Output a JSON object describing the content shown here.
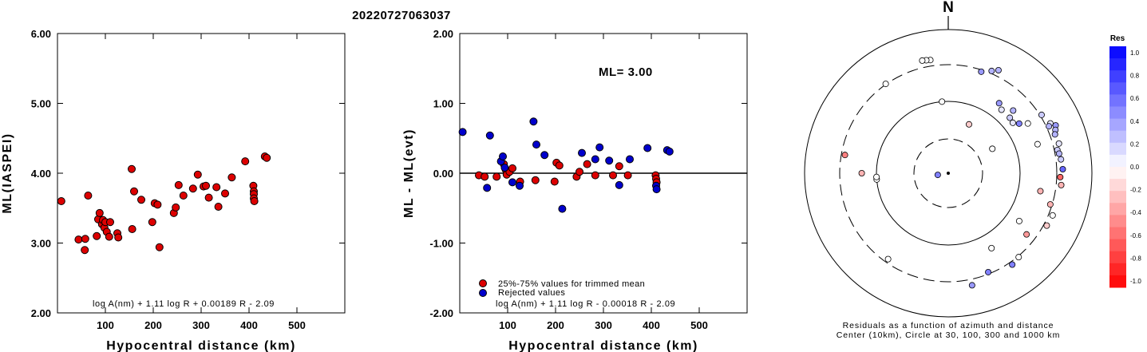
{
  "title": "20220727063037",
  "chart_data": [
    {
      "type": "scatter",
      "panel": "ml-vs-distance",
      "xlabel": "Hypocentral distance (km)",
      "ylabel": "ML(IASPEI)",
      "xlim": [
        0,
        600
      ],
      "ylim": [
        2.0,
        6.0
      ],
      "x_ticks": [
        "100",
        "200",
        "300",
        "400",
        "500"
      ],
      "y_ticks": [
        "2.00",
        "3.00",
        "4.00",
        "5.00",
        "6.00"
      ],
      "formula": "log A(nm) + 1.11 log R + 0.00189 R - 2.09",
      "marker_color": "#dd0000",
      "points": [
        [
          8,
          3.6
        ],
        [
          44,
          3.05
        ],
        [
          57,
          2.9
        ],
        [
          58,
          3.06
        ],
        [
          64,
          3.68
        ],
        [
          82,
          3.1
        ],
        [
          85,
          3.34
        ],
        [
          88,
          3.43
        ],
        [
          93,
          3.27
        ],
        [
          95,
          3.33
        ],
        [
          98,
          3.22
        ],
        [
          100,
          3.3
        ],
        [
          103,
          3.16
        ],
        [
          108,
          3.09
        ],
        [
          110,
          3.3
        ],
        [
          125,
          3.14
        ],
        [
          127,
          3.08
        ],
        [
          155,
          4.06
        ],
        [
          156,
          3.2
        ],
        [
          160,
          3.74
        ],
        [
          175,
          3.62
        ],
        [
          198,
          3.3
        ],
        [
          203,
          3.57
        ],
        [
          209,
          3.55
        ],
        [
          213,
          2.94
        ],
        [
          243,
          3.43
        ],
        [
          247,
          3.51
        ],
        [
          253,
          3.83
        ],
        [
          263,
          3.68
        ],
        [
          283,
          3.78
        ],
        [
          293,
          3.98
        ],
        [
          305,
          3.81
        ],
        [
          310,
          3.82
        ],
        [
          316,
          3.65
        ],
        [
          332,
          3.8
        ],
        [
          336,
          3.52
        ],
        [
          350,
          3.71
        ],
        [
          364,
          3.94
        ],
        [
          392,
          4.17
        ],
        [
          409,
          3.82
        ],
        [
          410,
          3.74
        ],
        [
          410,
          3.7
        ],
        [
          410,
          3.64
        ],
        [
          411,
          3.6
        ],
        [
          433,
          4.24
        ],
        [
          437,
          4.22
        ]
      ]
    },
    {
      "type": "scatter",
      "panel": "residual-vs-distance",
      "xlabel": "Hypocentral distance (km)",
      "ylabel": "ML - ML(evt)",
      "xlim": [
        0,
        600
      ],
      "ylim": [
        -2.0,
        2.0
      ],
      "x_ticks": [
        "100",
        "200",
        "300",
        "400",
        "500"
      ],
      "y_ticks": [
        "-2.00",
        "-1.00",
        "0.00",
        "1.00",
        "2.00"
      ],
      "ml_label": "ML= 3.00",
      "formula": "log A(nm) + 1.11 log R - 0.00018 R - 2.09",
      "legend": [
        {
          "label": "25%-75% values for trimmed mean",
          "color": "#dd0000"
        },
        {
          "label": "Rejected values",
          "color": "#0000cc"
        }
      ],
      "series": [
        {
          "name": "25%-75% values for trimmed mean",
          "color": "#dd0000",
          "points": [
            [
              40,
              -0.03
            ],
            [
              52,
              -0.05
            ],
            [
              77,
              -0.05
            ],
            [
              92,
              0.13
            ],
            [
              96,
              0.05
            ],
            [
              98,
              -0.02
            ],
            [
              104,
              0.02
            ],
            [
              110,
              0.07
            ],
            [
              126,
              -0.12
            ],
            [
              158,
              -0.1
            ],
            [
              198,
              -0.12
            ],
            [
              202,
              0.15
            ],
            [
              208,
              0.11
            ],
            [
              244,
              -0.05
            ],
            [
              250,
              0.02
            ],
            [
              266,
              0.13
            ],
            [
              283,
              -0.03
            ],
            [
              320,
              -0.03
            ],
            [
              333,
              0.1
            ],
            [
              351,
              -0.03
            ],
            [
              409,
              -0.03
            ],
            [
              410,
              -0.08
            ],
            [
              411,
              -0.13
            ]
          ]
        },
        {
          "name": "Rejected values",
          "color": "#0000cc",
          "points": [
            [
              6,
              0.59
            ],
            [
              57,
              -0.21
            ],
            [
              63,
              0.54
            ],
            [
              86,
              0.17
            ],
            [
              90,
              0.24
            ],
            [
              94,
              0.08
            ],
            [
              110,
              -0.13
            ],
            [
              125,
              -0.18
            ],
            [
              154,
              0.74
            ],
            [
              160,
              0.41
            ],
            [
              177,
              0.26
            ],
            [
              214,
              -0.51
            ],
            [
              255,
              0.29
            ],
            [
              283,
              0.2
            ],
            [
              292,
              0.37
            ],
            [
              312,
              0.18
            ],
            [
              333,
              -0.17
            ],
            [
              355,
              0.2
            ],
            [
              392,
              0.36
            ],
            [
              410,
              -0.18
            ],
            [
              411,
              -0.23
            ],
            [
              433,
              0.33
            ],
            [
              438,
              0.31
            ]
          ]
        }
      ]
    },
    {
      "type": "scatter",
      "panel": "azimuth-distance-residual-map",
      "north_label": "N",
      "caption_line1": "Residuals as a function of azimuth and distance",
      "caption_line2": "Center (10km), Circle at 30, 100, 300 and 1000 km",
      "colorbar_title": "Res",
      "colorbar_ticks": [
        "1.0",
        "0.8",
        "0.6",
        "0.4",
        "0.2",
        "0.0",
        "-0.2",
        "-0.4",
        "-0.6",
        "-0.8",
        "-1.0"
      ],
      "colorbar_scale": {
        "min": -1.0,
        "max": 1.0,
        "negative_color": "#ff0000",
        "positive_color": "#0000ff",
        "zero_color": "#ffffff"
      },
      "circles_km": [
        30,
        100,
        300,
        1000
      ],
      "points": [
        {
          "az": 261,
          "dist": 12,
          "res": 0.5
        },
        {
          "az": 351,
          "dist": 420,
          "res": 0.0
        },
        {
          "az": 349,
          "dist": 430,
          "res": 0.0
        },
        {
          "az": 347,
          "dist": 440,
          "res": 0.0
        },
        {
          "az": 325,
          "dist": 310,
          "res": 0.0
        },
        {
          "az": 18,
          "dist": 290,
          "res": 0.4
        },
        {
          "az": 23,
          "dist": 350,
          "res": 0.3
        },
        {
          "az": 26,
          "dist": 420,
          "res": 0.3
        },
        {
          "az": 355,
          "dist": 100,
          "res": 0.0
        },
        {
          "az": 23,
          "dist": 65,
          "res": -0.2
        },
        {
          "az": 36,
          "dist": 180,
          "res": 0.4
        },
        {
          "az": 40,
          "dist": 160,
          "res": 0.1
        },
        {
          "az": 46,
          "dist": 200,
          "res": 0.3
        },
        {
          "az": 48,
          "dist": 160,
          "res": 0.2
        },
        {
          "az": 52,
          "dist": 155,
          "res": 0.1
        },
        {
          "az": 55,
          "dist": 180,
          "res": 0.5
        },
        {
          "az": 58,
          "dist": 220,
          "res": 0.0
        },
        {
          "az": 58,
          "dist": 330,
          "res": 0.2
        },
        {
          "az": 61,
          "dist": 60,
          "res": 0.0
        },
        {
          "az": 64,
          "dist": 400,
          "res": 0.1
        },
        {
          "az": 65,
          "dist": 350,
          "res": 0.3
        },
        {
          "az": 66,
          "dist": 480,
          "res": 0.4
        },
        {
          "az": 68,
          "dist": 440,
          "res": 0.3
        },
        {
          "az": 70,
          "dist": 400,
          "res": 0.3
        },
        {
          "az": 72,
          "dist": 220,
          "res": 0.0
        },
        {
          "az": 75,
          "dist": 420,
          "res": 0.1
        },
        {
          "az": 78,
          "dist": 360,
          "res": 0.2
        },
        {
          "az": 80,
          "dist": 380,
          "res": 0.3
        },
        {
          "az": 83,
          "dist": 400,
          "res": 0.2
        },
        {
          "az": 88,
          "dist": 420,
          "res": 0.6
        },
        {
          "az": 92,
          "dist": 370,
          "res": -0.6
        },
        {
          "az": 96,
          "dist": 400,
          "res": -0.3
        },
        {
          "az": 101,
          "dist": 220,
          "res": -0.3
        },
        {
          "az": 107,
          "dist": 290,
          "res": -0.3
        },
        {
          "az": 112,
          "dist": 380,
          "res": 0.0
        },
        {
          "az": 118,
          "dist": 360,
          "res": -0.2
        },
        {
          "az": 124,
          "dist": 175,
          "res": 0.0
        },
        {
          "az": 128,
          "dist": 250,
          "res": -0.4
        },
        {
          "az": 140,
          "dist": 320,
          "res": 0.0
        },
        {
          "az": 145,
          "dist": 360,
          "res": 0.5
        },
        {
          "az": 158,
          "dist": 290,
          "res": 0.5
        },
        {
          "az": 168,
          "dist": 420,
          "res": 0.4
        },
        {
          "az": 150,
          "dist": 180,
          "res": 0.0
        },
        {
          "az": 215,
          "dist": 280,
          "res": 0.0
        },
        {
          "az": 265,
          "dist": 100,
          "res": 0.0
        },
        {
          "az": 267,
          "dist": 100,
          "res": 0.0
        },
        {
          "az": 270,
          "dist": 180,
          "res": -0.3
        },
        {
          "az": 280,
          "dist": 280,
          "res": -0.5
        }
      ]
    }
  ]
}
